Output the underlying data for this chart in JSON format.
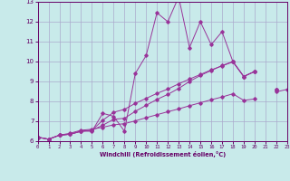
{
  "xlabel": "Windchill (Refroidissement éolien,°C)",
  "bg_color": "#c8eaea",
  "line_color": "#993399",
  "grid_color": "#aaaacc",
  "spine_color": "#660066",
  "tick_color": "#660066",
  "xmin": 0,
  "xmax": 23,
  "ymin": 6,
  "ymax": 13,
  "yticks": [
    6,
    7,
    8,
    9,
    10,
    11,
    12,
    13
  ],
  "xticks": [
    0,
    1,
    2,
    3,
    4,
    5,
    6,
    7,
    8,
    9,
    10,
    11,
    12,
    13,
    14,
    15,
    16,
    17,
    18,
    19,
    20,
    21,
    22,
    23
  ],
  "series_x": [
    0,
    1,
    2,
    3,
    4,
    5,
    6,
    7,
    8,
    9,
    10,
    11,
    12,
    13,
    14,
    15,
    16,
    17,
    18,
    19,
    20,
    21,
    22,
    23
  ],
  "series1_y": [
    6.2,
    6.1,
    6.3,
    6.35,
    6.5,
    6.5,
    7.4,
    7.25,
    6.5,
    9.4,
    10.3,
    12.45,
    12.0,
    13.25,
    10.7,
    12.0,
    10.85,
    11.5,
    10.0,
    9.25,
    9.5,
    null,
    8.6,
    null
  ],
  "series2_y": [
    6.2,
    6.1,
    6.3,
    6.35,
    6.5,
    6.55,
    6.8,
    7.1,
    7.15,
    7.5,
    7.8,
    8.1,
    8.35,
    8.65,
    9.0,
    9.3,
    9.55,
    9.8,
    10.0,
    9.25,
    9.5,
    null,
    8.6,
    null
  ],
  "series3_y": [
    6.2,
    6.1,
    6.3,
    6.35,
    6.5,
    6.55,
    7.05,
    7.45,
    7.6,
    7.9,
    8.15,
    8.4,
    8.62,
    8.88,
    9.12,
    9.35,
    9.58,
    9.78,
    9.98,
    9.25,
    9.5,
    null,
    8.6,
    null
  ],
  "series4_y": [
    6.2,
    6.1,
    6.3,
    6.4,
    6.55,
    6.6,
    6.7,
    6.82,
    6.88,
    7.02,
    7.18,
    7.33,
    7.48,
    7.62,
    7.78,
    7.93,
    8.08,
    8.22,
    8.38,
    8.05,
    8.12,
    null,
    8.48,
    8.6
  ]
}
